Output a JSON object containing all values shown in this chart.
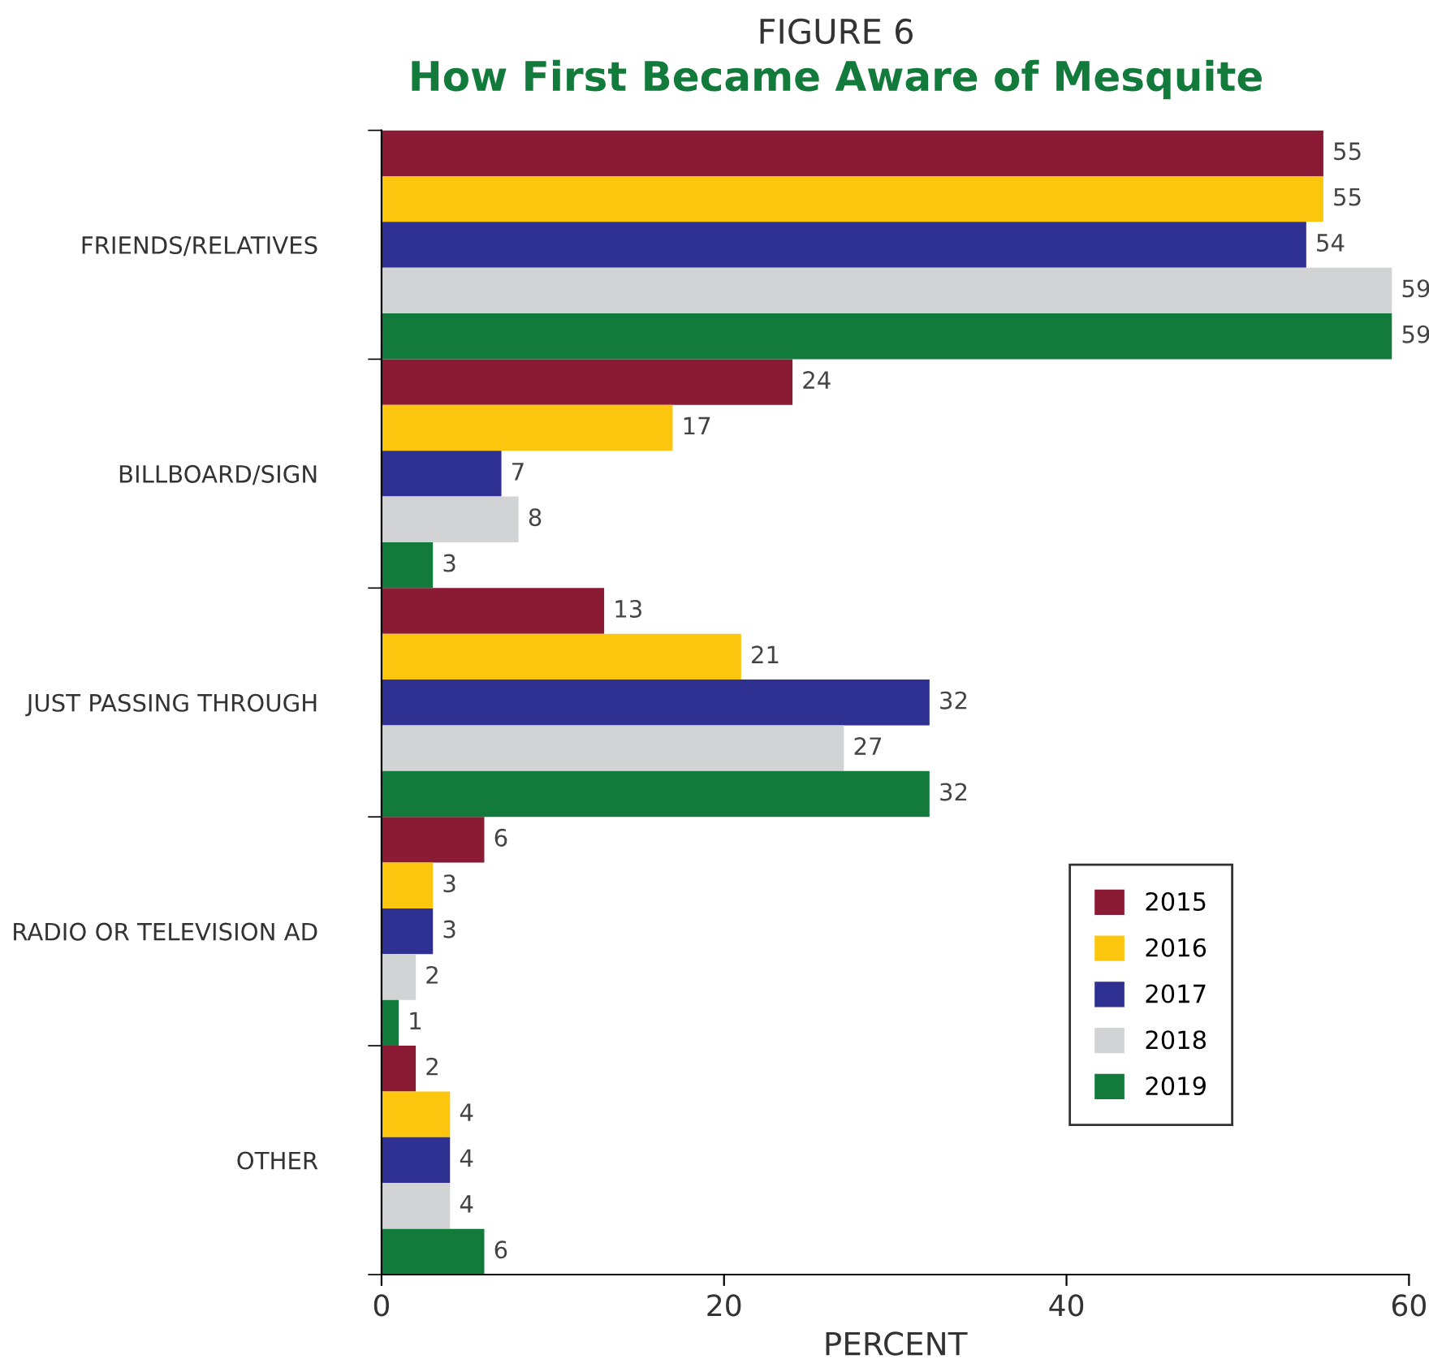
{
  "chart_data": {
    "type": "bar",
    "orientation": "horizontal",
    "subtitle": "FIGURE 6",
    "title": "How First Became Aware of Mesquite",
    "xlabel": "PERCENT",
    "categories": [
      "FRIENDS/RELATIVES",
      "BILLBOARD/SIGN",
      "JUST PASSING THROUGH",
      "RADIO OR TELEVISION AD",
      "OTHER"
    ],
    "series": [
      {
        "name": "2015",
        "color": "#8b1a34",
        "values": [
          55,
          24,
          13,
          6,
          2
        ]
      },
      {
        "name": "2016",
        "color": "#fcc60e",
        "values": [
          55,
          17,
          21,
          3,
          4
        ]
      },
      {
        "name": "2017",
        "color": "#2e3192",
        "values": [
          54,
          7,
          32,
          3,
          4
        ]
      },
      {
        "name": "2018",
        "color": "#d1d3d4",
        "values": [
          59,
          8,
          27,
          2,
          4
        ]
      },
      {
        "name": "2019",
        "color": "#127a3a",
        "values": [
          59,
          3,
          32,
          1,
          6
        ]
      }
    ],
    "xlim": [
      0,
      60
    ],
    "xticks": [
      0,
      20,
      40,
      60
    ],
    "data_labels": true,
    "grid": false,
    "legend": "bottom right"
  }
}
